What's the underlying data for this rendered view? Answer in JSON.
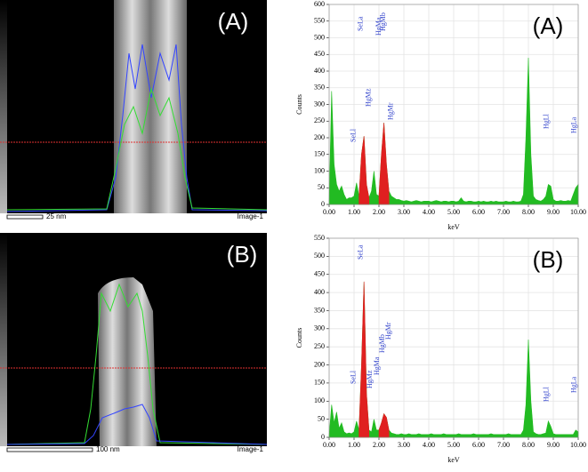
{
  "images": [
    {
      "label": "(A)",
      "scale": "25 nm",
      "caption": "Image-1"
    },
    {
      "label": "(B)",
      "scale": "100 nm",
      "caption": "Image-1"
    }
  ],
  "chart_data": [
    {
      "type": "area",
      "label": "(A)",
      "x_label": "keV",
      "y_label": "Counts",
      "xlim": [
        0,
        10
      ],
      "ylim": [
        0,
        600
      ],
      "grid": true,
      "xticks": [
        {
          "value": 0,
          "label": "0.00"
        },
        {
          "value": 1,
          "label": "1.00"
        },
        {
          "value": 2,
          "label": "2.00"
        },
        {
          "value": 3,
          "label": "3.00"
        },
        {
          "value": 4,
          "label": "4.00"
        },
        {
          "value": 5,
          "label": "5.00"
        },
        {
          "value": 6,
          "label": "6.00"
        },
        {
          "value": 7,
          "label": "7.00"
        },
        {
          "value": 8,
          "label": "8.00"
        },
        {
          "value": 9,
          "label": "9.00"
        },
        {
          "value": 10,
          "label": "10.00"
        }
      ],
      "yticks": [
        0,
        50,
        100,
        150,
        200,
        250,
        300,
        350,
        400,
        450,
        500,
        550,
        600
      ],
      "annotations": [
        "SeLl",
        "SeLa",
        "HgMz",
        "HgMa",
        "HgMb",
        "HgMr",
        "HgLl",
        "HgLa"
      ],
      "series": [
        {
          "color": "#22bb22",
          "x": [
            0,
            0.1,
            0.2,
            0.3,
            0.4,
            0.5,
            0.6,
            0.7,
            0.8,
            0.9,
            1,
            1.1,
            1.2,
            1.3,
            1.4,
            1.5,
            1.6,
            1.7,
            1.8,
            1.9,
            2,
            2.1,
            2.2,
            2.3,
            2.4,
            2.5,
            2.6,
            2.7,
            2.8,
            2.9,
            3,
            3.1,
            3.2,
            3.3,
            3.4,
            3.5,
            3.6,
            3.7,
            3.8,
            3.9,
            4,
            4.1,
            4.2,
            4.3,
            4.4,
            4.5,
            4.6,
            4.7,
            4.8,
            4.9,
            5,
            5.1,
            5.2,
            5.3,
            5.4,
            5.5,
            5.6,
            5.7,
            5.8,
            5.9,
            6,
            6.1,
            6.2,
            6.3,
            6.4,
            6.5,
            6.6,
            6.7,
            6.8,
            6.9,
            7,
            7.1,
            7.2,
            7.3,
            7.4,
            7.5,
            7.6,
            7.7,
            7.8,
            7.9,
            8,
            8.1,
            8.2,
            8.3,
            8.4,
            8.5,
            8.6,
            8.7,
            8.8,
            8.9,
            9,
            9.1,
            9.2,
            9.3,
            9.4,
            9.5,
            9.6,
            9.7,
            9.8,
            9.9,
            10
          ],
          "values": [
            5,
            340,
            120,
            60,
            40,
            55,
            30,
            15,
            20,
            20,
            25,
            65,
            25,
            150,
            205,
            60,
            20,
            40,
            100,
            30,
            25,
            150,
            245,
            120,
            40,
            25,
            20,
            15,
            15,
            12,
            10,
            12,
            10,
            8,
            10,
            12,
            10,
            8,
            10,
            10,
            10,
            8,
            10,
            12,
            10,
            8,
            10,
            10,
            8,
            10,
            10,
            8,
            10,
            20,
            10,
            8,
            10,
            10,
            8,
            8,
            10,
            8,
            10,
            8,
            8,
            10,
            8,
            10,
            8,
            8,
            8,
            10,
            8,
            8,
            10,
            8,
            8,
            10,
            30,
            200,
            440,
            150,
            25,
            15,
            12,
            10,
            15,
            25,
            60,
            55,
            15,
            10,
            10,
            12,
            10,
            10,
            12,
            10,
            30,
            50,
            60
          ]
        },
        {
          "color": "#e02020",
          "x": [
            1.2,
            1.3,
            1.4,
            1.5,
            1.6
          ],
          "values": [
            25,
            150,
            205,
            60,
            20
          ]
        },
        {
          "color": "#e02020",
          "x": [
            2.0,
            2.1,
            2.2,
            2.3,
            2.4
          ],
          "values": [
            25,
            150,
            245,
            120,
            40
          ]
        }
      ]
    },
    {
      "type": "area",
      "label": "(B)",
      "x_label": "keV",
      "y_label": "Counts",
      "xlim": [
        0,
        10
      ],
      "ylim": [
        0,
        550
      ],
      "grid": true,
      "xticks": [
        {
          "value": 0,
          "label": "0.00"
        },
        {
          "value": 1,
          "label": "1.00"
        },
        {
          "value": 2,
          "label": "2.00"
        },
        {
          "value": 3,
          "label": "3.00"
        },
        {
          "value": 4,
          "label": "4.00"
        },
        {
          "value": 5,
          "label": "5.00"
        },
        {
          "value": 6,
          "label": "6.00"
        },
        {
          "value": 7,
          "label": "7.00"
        },
        {
          "value": 8,
          "label": "8.00"
        },
        {
          "value": 9,
          "label": "9.00"
        },
        {
          "value": 10,
          "label": "10.00"
        }
      ],
      "yticks": [
        0,
        50,
        100,
        150,
        200,
        250,
        300,
        350,
        400,
        450,
        500,
        550
      ],
      "annotations": [
        "SeLl",
        "SeLa",
        "HgMz",
        "HgMa",
        "HgMb",
        "HgMr",
        "HgLl",
        "HgLa"
      ],
      "series": [
        {
          "color": "#22bb22",
          "x": [
            0,
            0.1,
            0.2,
            0.3,
            0.4,
            0.5,
            0.6,
            0.7,
            0.8,
            0.9,
            1,
            1.1,
            1.2,
            1.3,
            1.4,
            1.5,
            1.6,
            1.7,
            1.8,
            1.9,
            2,
            2.1,
            2.2,
            2.3,
            2.4,
            2.5,
            2.6,
            2.7,
            2.8,
            2.9,
            3,
            3.1,
            3.2,
            3.3,
            3.4,
            3.5,
            3.6,
            3.7,
            3.8,
            3.9,
            4,
            4.1,
            4.2,
            4.3,
            4.4,
            4.5,
            4.6,
            4.7,
            4.8,
            4.9,
            5,
            5.1,
            5.2,
            5.3,
            5.4,
            5.5,
            5.6,
            5.7,
            5.8,
            5.9,
            6,
            6.1,
            6.2,
            6.3,
            6.4,
            6.5,
            6.6,
            6.7,
            6.8,
            6.9,
            7,
            7.1,
            7.2,
            7.3,
            7.4,
            7.5,
            7.6,
            7.7,
            7.8,
            7.9,
            8,
            8.1,
            8.2,
            8.3,
            8.4,
            8.5,
            8.6,
            8.7,
            8.8,
            8.9,
            9,
            9.1,
            9.2,
            9.3,
            9.4,
            9.5,
            9.6,
            9.7,
            9.8,
            9.9,
            10
          ],
          "values": [
            5,
            90,
            40,
            70,
            25,
            40,
            15,
            10,
            12,
            10,
            15,
            45,
            20,
            200,
            430,
            120,
            20,
            15,
            50,
            20,
            20,
            40,
            65,
            55,
            20,
            12,
            10,
            8,
            8,
            10,
            8,
            8,
            10,
            8,
            8,
            8,
            10,
            8,
            8,
            8,
            8,
            10,
            8,
            8,
            8,
            8,
            10,
            8,
            8,
            8,
            8,
            8,
            10,
            8,
            8,
            8,
            8,
            8,
            10,
            8,
            8,
            8,
            8,
            8,
            8,
            10,
            8,
            8,
            8,
            8,
            8,
            8,
            10,
            8,
            8,
            8,
            8,
            8,
            20,
            90,
            270,
            100,
            15,
            10,
            8,
            8,
            10,
            12,
            45,
            30,
            10,
            8,
            8,
            8,
            8,
            8,
            8,
            8,
            8,
            20,
            15
          ]
        },
        {
          "color": "#e02020",
          "x": [
            1.2,
            1.3,
            1.4,
            1.5,
            1.6
          ],
          "values": [
            20,
            200,
            430,
            120,
            20
          ]
        },
        {
          "color": "#e02020",
          "x": [
            2.0,
            2.1,
            2.2,
            2.3,
            2.4
          ],
          "values": [
            20,
            40,
            65,
            55,
            20
          ]
        }
      ]
    }
  ]
}
